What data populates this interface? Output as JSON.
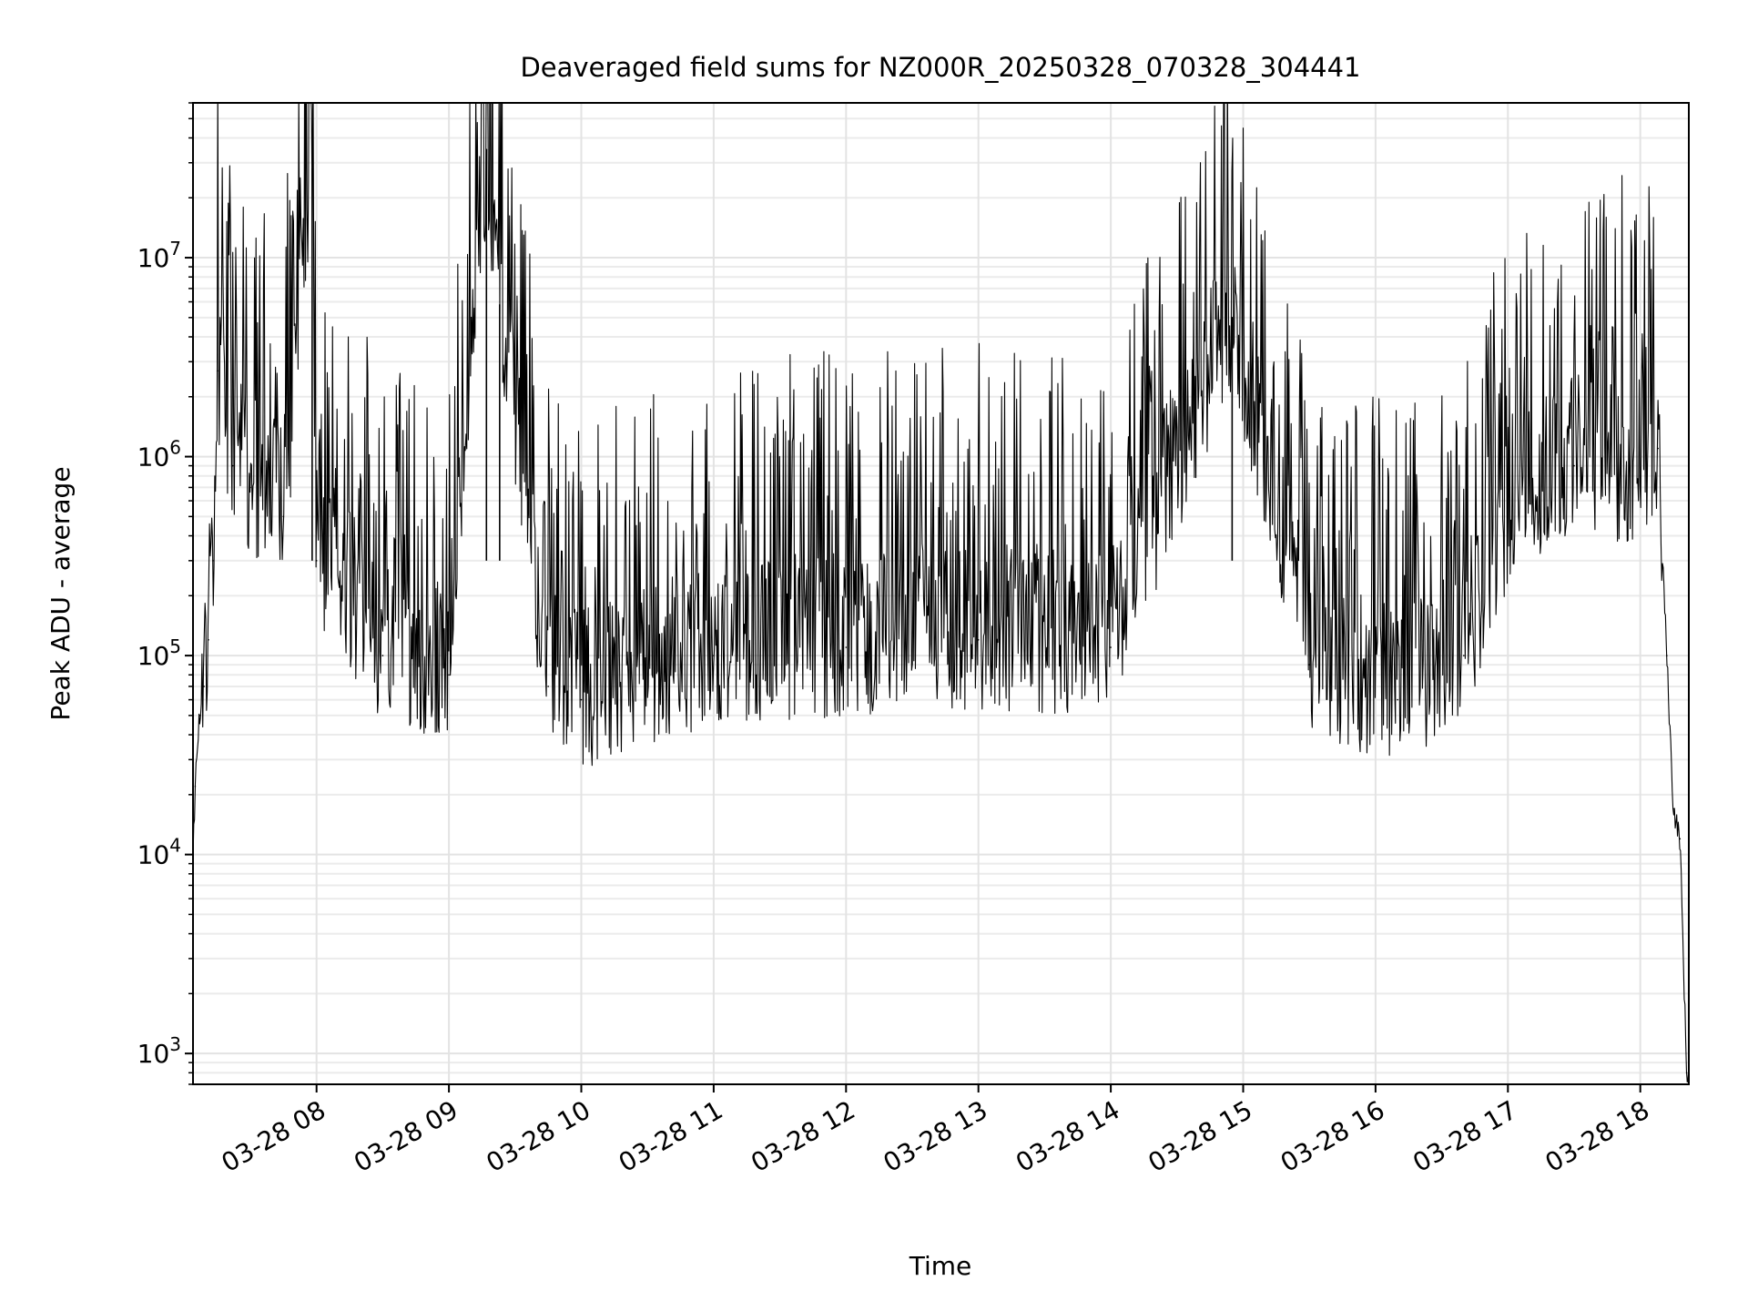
{
  "chart_data": {
    "type": "line",
    "title": "Deaveraged field sums for NZ000R_20250328_070328_304441",
    "xlabel": "Time",
    "ylabel": "Peak ADU - average",
    "yscale": "log",
    "ylim": [
      700,
      60000000
    ],
    "xlim": [
      "2025-03-28 07:04",
      "2025-03-28 18:22"
    ],
    "grid": true,
    "x_ticks": [
      "03-28 08",
      "03-28 09",
      "03-28 10",
      "03-28 11",
      "03-28 12",
      "03-28 13",
      "03-28 14",
      "03-28 15",
      "03-28 16",
      "03-28 17",
      "03-28 18"
    ],
    "y_ticks": [
      {
        "value": 1000,
        "base": "10",
        "exp": "3"
      },
      {
        "value": 10000,
        "base": "10",
        "exp": "4"
      },
      {
        "value": 100000,
        "base": "10",
        "exp": "5"
      },
      {
        "value": 1000000,
        "base": "10",
        "exp": "6"
      },
      {
        "value": 10000000,
        "base": "10",
        "exp": "7"
      }
    ],
    "series": [
      {
        "color": "#000000",
        "points": [
          [
            "2025-03-28 07:04",
            10000
          ],
          [
            "2025-03-28 07:05",
            22000
          ],
          [
            "2025-03-28 07:07",
            50000
          ],
          [
            "2025-03-28 07:09",
            70000
          ],
          [
            "2025-03-28 07:11",
            120000
          ],
          [
            "2025-03-28 07:13",
            300000
          ],
          [
            "2025-03-28 07:15",
            2700000
          ],
          [
            "2025-03-28 07:22",
            900000
          ],
          [
            "2025-03-28 07:30",
            700000
          ],
          [
            "2025-03-28 07:45",
            500000
          ],
          [
            "2025-03-28 07:58",
            28000000
          ],
          [
            "2025-03-28 08:00",
            300000
          ],
          [
            "2025-03-28 08:30",
            100000
          ],
          [
            "2025-03-28 09:00",
            80000
          ],
          [
            "2025-03-28 09:17",
            35000000
          ],
          [
            "2025-03-28 09:23",
            5800000
          ],
          [
            "2025-03-28 09:45",
            70000
          ],
          [
            "2025-03-28 10:00",
            60000
          ],
          [
            "2025-03-28 11:00",
            100000
          ],
          [
            "2025-03-28 12:00",
            110000
          ],
          [
            "2025-03-28 13:00",
            120000
          ],
          [
            "2025-03-28 14:00",
            110000
          ],
          [
            "2025-03-28 14:55",
            5000000
          ],
          [
            "2025-03-28 15:30",
            90000
          ],
          [
            "2025-03-28 16:10",
            60000
          ],
          [
            "2025-03-28 16:40",
            100000
          ],
          [
            "2025-03-28 17:00",
            500000
          ],
          [
            "2025-03-28 17:30",
            900000
          ],
          [
            "2025-03-28 18:00",
            800000
          ],
          [
            "2025-03-28 18:08",
            1100000
          ],
          [
            "2025-03-28 18:12",
            100000
          ],
          [
            "2025-03-28 18:15",
            17000
          ],
          [
            "2025-03-28 18:18",
            12000
          ],
          [
            "2025-03-28 18:21",
            800
          ]
        ]
      }
    ]
  }
}
